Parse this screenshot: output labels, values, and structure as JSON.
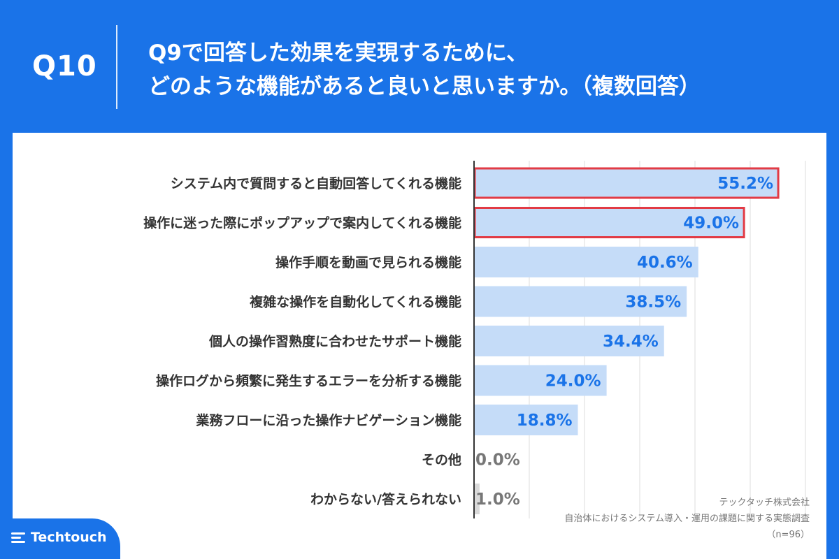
{
  "header": {
    "question_number": "Q10",
    "title_line1": "Q9で回答した効果を実現するために、",
    "title_line2": "どのような機能があると良いと思いますか。（複数回答）"
  },
  "chart_data": {
    "type": "bar",
    "orientation": "horizontal",
    "title": "",
    "xlabel": "",
    "ylabel": "",
    "xlim": [
      0,
      60
    ],
    "grid": true,
    "categories": [
      "システム内で質問すると自動回答してくれる機能",
      "操作に迷った際にポップアップで案内してくれる機能",
      "操作手順を動画で見られる機能",
      "複雑な操作を自動化してくれる機能",
      "個人の操作習熟度に合わせたサポート機能",
      "操作ログから頻繁に発生するエラーを分析する機能",
      "業務フローに沿った操作ナビゲーション機能",
      "その他",
      "わからない/答えられない"
    ],
    "values": [
      55.2,
      49.0,
      40.6,
      38.5,
      34.4,
      24.0,
      18.8,
      0.0,
      1.0
    ],
    "value_labels": [
      "55.2%",
      "49.0%",
      "40.6%",
      "38.5%",
      "34.4%",
      "24.0%",
      "18.8%",
      "0.0%",
      "1.0%"
    ],
    "highlighted": [
      true,
      true,
      false,
      false,
      false,
      false,
      false,
      false,
      false
    ],
    "colors": {
      "bar": "#c5dcf8",
      "bar_minor": "#d9d9d9",
      "label": "#1a73e8",
      "label_minor": "#777777",
      "highlight_border": "#e23b45",
      "grid": "#dddddd",
      "axis": "#333333"
    }
  },
  "footer": {
    "company": "テックタッチ株式会社",
    "survey": "自治体におけるシステム導入・運用の課題に関する実態調査",
    "sample": "（n=96）",
    "logo_text": "Techtouch"
  }
}
